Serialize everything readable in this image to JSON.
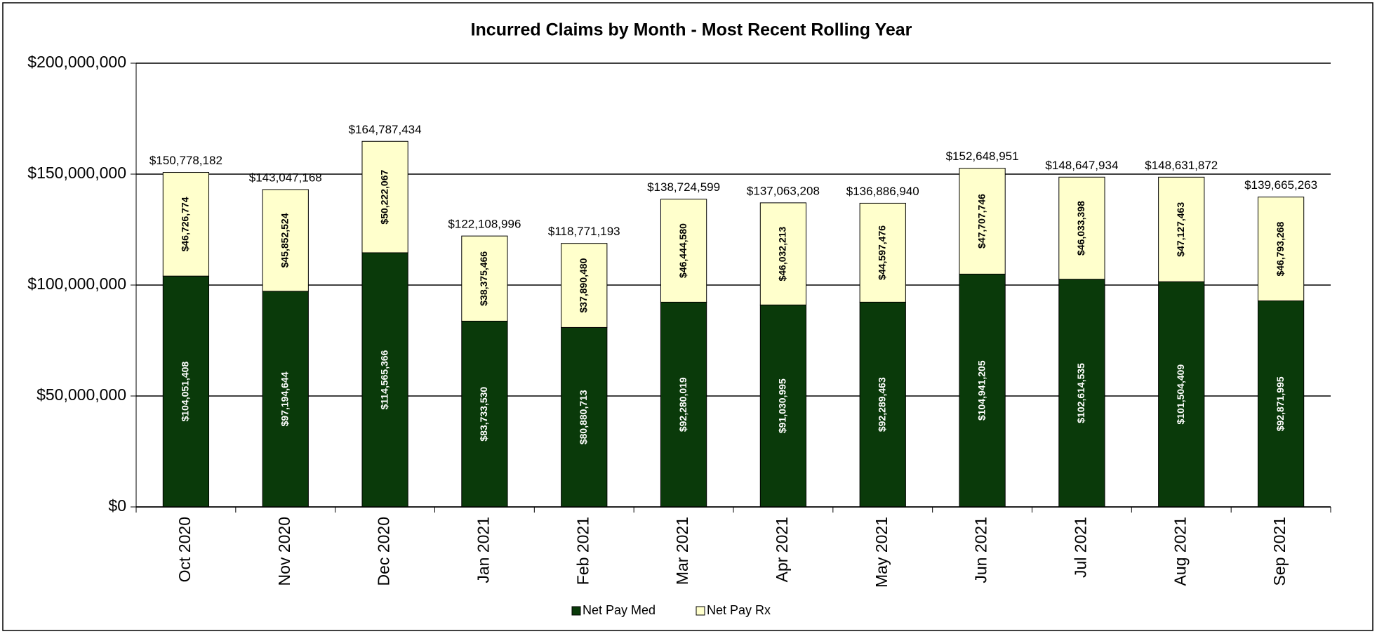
{
  "chart_data": {
    "type": "stacked_bar",
    "title": "Incurred Claims by Month - Most Recent Rolling Year",
    "categories": [
      "Oct 2020",
      "Nov 2020",
      "Dec 2020",
      "Jan 2021",
      "Feb 2021",
      "Mar 2021",
      "Apr 2021",
      "May 2021",
      "Jun 2021",
      "Jul 2021",
      "Aug 2021",
      "Sep 2021"
    ],
    "series": [
      {
        "name": "Net Pay Med",
        "color": "#0a3a0a",
        "values": [
          104051408,
          97194644,
          114565366,
          83733530,
          80880713,
          92280019,
          91030995,
          92289463,
          104941205,
          102614535,
          101504409,
          92871995
        ],
        "value_labels": [
          "$104,051,408",
          "$97,194,644",
          "$114,565,366",
          "$83,733,530",
          "$80,880,713",
          "$92,280,019",
          "$91,030,995",
          "$92,289,463",
          "$104,941,205",
          "$102,614,535",
          "$101,504,409",
          "$92,871,995"
        ]
      },
      {
        "name": "Net Pay Rx",
        "color": "#ffffcc",
        "values": [
          46726774,
          45852524,
          50222067,
          38375466,
          37890480,
          46444580,
          46032213,
          44597476,
          47707746,
          46033398,
          47127463,
          46793268
        ],
        "value_labels": [
          "$46,726,774",
          "$45,852,524",
          "$50,222,067",
          "$38,375,466",
          "$37,890,480",
          "$46,444,580",
          "$46,032,213",
          "$44,597,476",
          "$47,707,746",
          "$46,033,398",
          "$47,127,463",
          "$46,793,268"
        ]
      }
    ],
    "totals": [
      150778182,
      143047168,
      164787434,
      122108996,
      118771193,
      138724599,
      137063208,
      136886940,
      152648951,
      148647934,
      148631872,
      139665263
    ],
    "total_labels": [
      "$150,778,182",
      "$143,047,168",
      "$164,787,434",
      "$122,108,996",
      "$118,771,193",
      "$138,724,599",
      "$137,063,208",
      "$136,886,940",
      "$152,648,951",
      "$148,647,934",
      "$148,631,872",
      "$139,665,263"
    ],
    "ylim": [
      0,
      200000000
    ],
    "yticks": [
      {
        "value": 0,
        "label": "$0"
      },
      {
        "value": 50000000,
        "label": "$50,000,000"
      },
      {
        "value": 100000000,
        "label": "$100,000,000"
      },
      {
        "value": 150000000,
        "label": "$150,000,000"
      },
      {
        "value": 200000000,
        "label": "$200,000,000"
      }
    ],
    "grid": true,
    "legend": "bottom"
  }
}
